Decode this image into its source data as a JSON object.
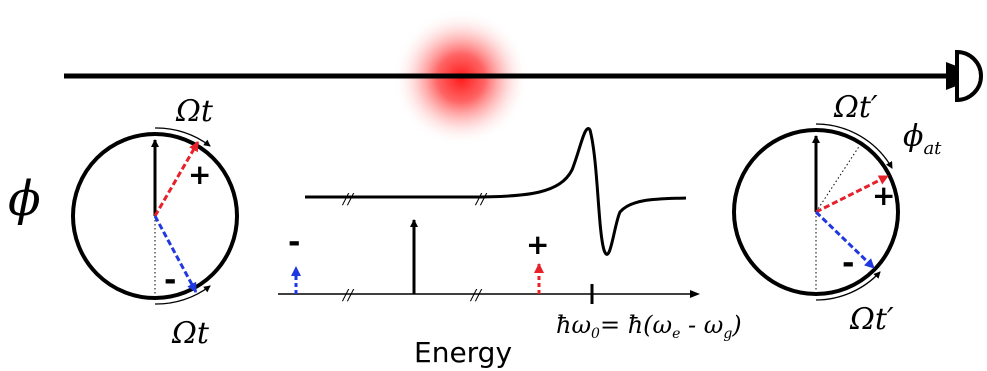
{
  "labels": {
    "phase_symbol": "ϕ",
    "omega_t_top_left": "Ωt",
    "omega_t_bottom_left": "Ωt",
    "plus_left": "+",
    "minus_left": "-",
    "omega_t_prime_top_right": "Ωt′",
    "omega_t_prime_bottom_right": "Ωt′",
    "phi_at_base": "ϕ",
    "phi_at_sub": "at",
    "plus_right": "+",
    "minus_right": "-",
    "spectrum_minus": "-",
    "spectrum_plus": "+",
    "axis_label": "Energy",
    "resonance_lhs": "ħω",
    "resonance_lhs_sub": "0",
    "resonance_eq": "= ħ(ω",
    "resonance_e_sub": "e",
    "resonance_minus": " - ω",
    "resonance_g_sub": "g",
    "resonance_close": ")",
    "axis_break": "//"
  },
  "colors": {
    "ink": "#000000",
    "red_sideband": "#e8202a",
    "blue_sideband": "#2038e0",
    "atom_glow": "#ff2020"
  },
  "icons": {
    "detector": "detector-icon",
    "beam": "laser-beam-arrow"
  }
}
